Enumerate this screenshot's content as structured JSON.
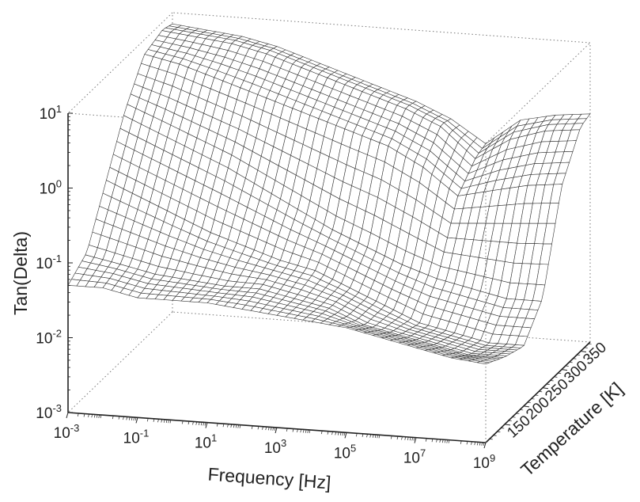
{
  "chart_data": {
    "type": "surface-3d",
    "xlabel": "Frequency [Hz]",
    "ylabel": "Temperature [K]",
    "zlabel": "Tan(Delta)",
    "x_scale": "log",
    "z_scale": "log",
    "xlim": [
      0.001,
      1000000000
    ],
    "ylim": [
      100,
      375
    ],
    "zlim": [
      0.001,
      10
    ],
    "x_ticks": [
      {
        "base": "10",
        "exp": "-3"
      },
      {
        "base": "10",
        "exp": "-1"
      },
      {
        "base": "10",
        "exp": "1"
      },
      {
        "base": "10",
        "exp": "3"
      },
      {
        "base": "10",
        "exp": "5"
      },
      {
        "base": "10",
        "exp": "7"
      },
      {
        "base": "10",
        "exp": "9"
      }
    ],
    "y_ticks": [
      "150",
      "200",
      "250",
      "300",
      "350"
    ],
    "z_ticks": [
      {
        "base": "10",
        "exp": "-3"
      },
      {
        "base": "10",
        "exp": "-2"
      },
      {
        "base": "10",
        "exp": "-1"
      },
      {
        "base": "10",
        "exp": "0"
      },
      {
        "base": "10",
        "exp": "1"
      }
    ],
    "log10_frequency_grid": [
      -3,
      -2,
      -1,
      0,
      1,
      2,
      3,
      4,
      5,
      6,
      7,
      8,
      9
    ],
    "temperature_grid": [
      100,
      150,
      200,
      250,
      300,
      350,
      375
    ],
    "log10_tan_delta": [
      [
        -1.3,
        -1.3,
        -1.4,
        -1.4,
        -1.4,
        -1.45,
        -1.5,
        -1.55,
        -1.6,
        -1.7,
        -1.8,
        -1.9,
        -1.95
      ],
      [
        -1.1,
        -1.2,
        -1.3,
        -1.35,
        -1.4,
        -1.4,
        -1.5,
        -1.6,
        -1.8,
        -1.9,
        -2.0,
        -2.1,
        -2.1
      ],
      [
        -0.4,
        -0.6,
        -0.8,
        -1.0,
        -1.15,
        -1.3,
        -1.4,
        -1.6,
        -1.8,
        -2.0,
        -2.1,
        -2.2,
        -2.2
      ],
      [
        0.3,
        0.1,
        -0.1,
        -0.3,
        -0.55,
        -0.8,
        -1.05,
        -1.25,
        -1.45,
        -1.6,
        -1.7,
        -1.8,
        -1.8
      ],
      [
        0.8,
        0.7,
        0.55,
        0.4,
        0.25,
        0.1,
        -0.05,
        -0.2,
        -0.45,
        -0.8,
        -0.7,
        -0.6,
        -0.55
      ],
      [
        0.9,
        0.85,
        0.8,
        0.7,
        0.55,
        0.4,
        0.25,
        0.1,
        -0.1,
        -0.5,
        -0.2,
        -0.05,
        0.0
      ],
      [
        0.85,
        0.8,
        0.75,
        0.65,
        0.5,
        0.35,
        0.2,
        0.05,
        -0.15,
        -0.45,
        -0.1,
        0.0,
        0.05
      ]
    ],
    "grid": true,
    "legend": "none"
  }
}
